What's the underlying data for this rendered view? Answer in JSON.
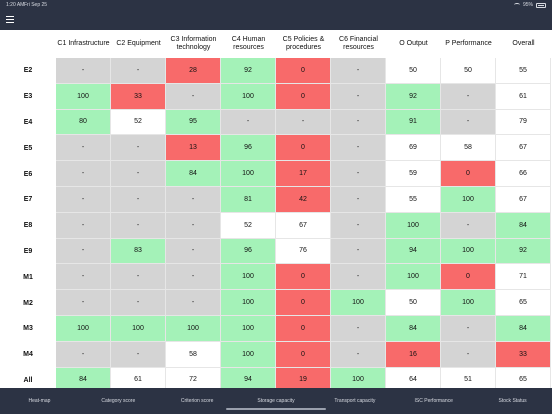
{
  "status_bar": {
    "time": "1:20 AM",
    "date": "Fri Sep 25",
    "battery": "95%"
  },
  "header": {
    "menu_icon": "hamburger-icon"
  },
  "columns": [
    "C1 Infrastructure",
    "C2 Equipment",
    "C3 Information technology",
    "C4 Human resources",
    "C5 Policies & procedures",
    "C6 Financial resources",
    "O Output",
    "P Performance",
    "Overall"
  ],
  "rows": [
    {
      "label": "E2",
      "cells": [
        {
          "v": "-",
          "c": "grey"
        },
        {
          "v": "-",
          "c": "grey"
        },
        {
          "v": "28",
          "c": "red"
        },
        {
          "v": "92",
          "c": "green"
        },
        {
          "v": "0",
          "c": "red"
        },
        {
          "v": "-",
          "c": "grey"
        },
        {
          "v": "50",
          "c": "white"
        },
        {
          "v": "50",
          "c": "white"
        },
        {
          "v": "55",
          "c": "white"
        }
      ]
    },
    {
      "label": "E3",
      "cells": [
        {
          "v": "100",
          "c": "green"
        },
        {
          "v": "33",
          "c": "red"
        },
        {
          "v": "-",
          "c": "grey"
        },
        {
          "v": "100",
          "c": "green"
        },
        {
          "v": "0",
          "c": "red"
        },
        {
          "v": "-",
          "c": "grey"
        },
        {
          "v": "92",
          "c": "green"
        },
        {
          "v": "-",
          "c": "grey"
        },
        {
          "v": "61",
          "c": "white"
        }
      ]
    },
    {
      "label": "E4",
      "cells": [
        {
          "v": "80",
          "c": "green"
        },
        {
          "v": "52",
          "c": "white"
        },
        {
          "v": "95",
          "c": "green"
        },
        {
          "v": "-",
          "c": "grey"
        },
        {
          "v": "-",
          "c": "grey"
        },
        {
          "v": "-",
          "c": "grey"
        },
        {
          "v": "91",
          "c": "green"
        },
        {
          "v": "-",
          "c": "grey"
        },
        {
          "v": "79",
          "c": "white"
        }
      ]
    },
    {
      "label": "E5",
      "cells": [
        {
          "v": "-",
          "c": "grey"
        },
        {
          "v": "-",
          "c": "grey"
        },
        {
          "v": "13",
          "c": "red"
        },
        {
          "v": "96",
          "c": "green"
        },
        {
          "v": "0",
          "c": "red"
        },
        {
          "v": "-",
          "c": "grey"
        },
        {
          "v": "69",
          "c": "white"
        },
        {
          "v": "58",
          "c": "white"
        },
        {
          "v": "67",
          "c": "white"
        }
      ]
    },
    {
      "label": "E6",
      "cells": [
        {
          "v": "-",
          "c": "grey"
        },
        {
          "v": "-",
          "c": "grey"
        },
        {
          "v": "84",
          "c": "green"
        },
        {
          "v": "100",
          "c": "green"
        },
        {
          "v": "17",
          "c": "red"
        },
        {
          "v": "-",
          "c": "grey"
        },
        {
          "v": "59",
          "c": "white"
        },
        {
          "v": "0",
          "c": "red"
        },
        {
          "v": "66",
          "c": "white"
        }
      ]
    },
    {
      "label": "E7",
      "cells": [
        {
          "v": "-",
          "c": "grey"
        },
        {
          "v": "-",
          "c": "grey"
        },
        {
          "v": "-",
          "c": "grey"
        },
        {
          "v": "81",
          "c": "green"
        },
        {
          "v": "42",
          "c": "red"
        },
        {
          "v": "-",
          "c": "grey"
        },
        {
          "v": "55",
          "c": "white"
        },
        {
          "v": "100",
          "c": "green"
        },
        {
          "v": "67",
          "c": "white"
        }
      ]
    },
    {
      "label": "E8",
      "cells": [
        {
          "v": "-",
          "c": "grey"
        },
        {
          "v": "-",
          "c": "grey"
        },
        {
          "v": "-",
          "c": "grey"
        },
        {
          "v": "52",
          "c": "white"
        },
        {
          "v": "67",
          "c": "white"
        },
        {
          "v": "-",
          "c": "grey"
        },
        {
          "v": "100",
          "c": "green"
        },
        {
          "v": "-",
          "c": "grey"
        },
        {
          "v": "84",
          "c": "green"
        }
      ]
    },
    {
      "label": "E9",
      "cells": [
        {
          "v": "-",
          "c": "grey"
        },
        {
          "v": "83",
          "c": "green"
        },
        {
          "v": "-",
          "c": "grey"
        },
        {
          "v": "96",
          "c": "green"
        },
        {
          "v": "76",
          "c": "white"
        },
        {
          "v": "-",
          "c": "grey"
        },
        {
          "v": "94",
          "c": "green"
        },
        {
          "v": "100",
          "c": "green"
        },
        {
          "v": "92",
          "c": "green"
        }
      ]
    },
    {
      "label": "M1",
      "cells": [
        {
          "v": "-",
          "c": "grey"
        },
        {
          "v": "-",
          "c": "grey"
        },
        {
          "v": "-",
          "c": "grey"
        },
        {
          "v": "100",
          "c": "green"
        },
        {
          "v": "0",
          "c": "red"
        },
        {
          "v": "-",
          "c": "grey"
        },
        {
          "v": "100",
          "c": "green"
        },
        {
          "v": "0",
          "c": "red"
        },
        {
          "v": "71",
          "c": "white"
        }
      ]
    },
    {
      "label": "M2",
      "cells": [
        {
          "v": "-",
          "c": "grey"
        },
        {
          "v": "-",
          "c": "grey"
        },
        {
          "v": "-",
          "c": "grey"
        },
        {
          "v": "100",
          "c": "green"
        },
        {
          "v": "0",
          "c": "red"
        },
        {
          "v": "100",
          "c": "green"
        },
        {
          "v": "50",
          "c": "white"
        },
        {
          "v": "100",
          "c": "green"
        },
        {
          "v": "65",
          "c": "white"
        }
      ]
    },
    {
      "label": "M3",
      "cells": [
        {
          "v": "100",
          "c": "green"
        },
        {
          "v": "100",
          "c": "green"
        },
        {
          "v": "100",
          "c": "green"
        },
        {
          "v": "100",
          "c": "green"
        },
        {
          "v": "0",
          "c": "red"
        },
        {
          "v": "-",
          "c": "grey"
        },
        {
          "v": "84",
          "c": "green"
        },
        {
          "v": "-",
          "c": "grey"
        },
        {
          "v": "84",
          "c": "green"
        }
      ]
    },
    {
      "label": "M4",
      "cells": [
        {
          "v": "-",
          "c": "grey"
        },
        {
          "v": "-",
          "c": "grey"
        },
        {
          "v": "58",
          "c": "white"
        },
        {
          "v": "100",
          "c": "green"
        },
        {
          "v": "0",
          "c": "red"
        },
        {
          "v": "-",
          "c": "grey"
        },
        {
          "v": "16",
          "c": "red"
        },
        {
          "v": "-",
          "c": "grey"
        },
        {
          "v": "33",
          "c": "red"
        }
      ]
    },
    {
      "label": "All",
      "cells": [
        {
          "v": "84",
          "c": "green"
        },
        {
          "v": "61",
          "c": "white"
        },
        {
          "v": "72",
          "c": "white"
        },
        {
          "v": "94",
          "c": "green"
        },
        {
          "v": "19",
          "c": "red"
        },
        {
          "v": "100",
          "c": "green"
        },
        {
          "v": "64",
          "c": "white"
        },
        {
          "v": "51",
          "c": "white"
        },
        {
          "v": "65",
          "c": "white"
        }
      ]
    }
  ],
  "tabs": [
    "Heat-map",
    "Category score",
    "Criterion score",
    "Storage capacity",
    "Transport capacity",
    "ISC Performance",
    "Stock Status"
  ],
  "colors": {
    "header_bg": "#2c3344",
    "green": "#a4f2b8",
    "red": "#f86a6a",
    "grey": "#d4d4d4",
    "white": "#ffffff"
  }
}
